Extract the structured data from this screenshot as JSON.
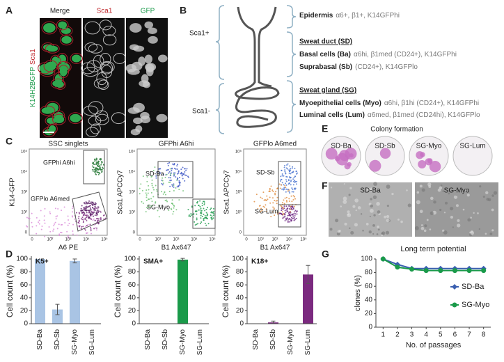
{
  "panel_labels": [
    "A",
    "B",
    "C",
    "D",
    "E",
    "F",
    "G"
  ],
  "panel_a": {
    "columns": [
      "Merge",
      "Sca1",
      "GFP"
    ],
    "side_label": [
      "K14H2BGFP",
      "Sca1"
    ]
  },
  "panel_b": {
    "groups": [
      "Sca1+",
      "Sca1-"
    ],
    "epidermis": {
      "name": "Epidermis",
      "markers": "α6+, β1+, K14GFPhi"
    },
    "sections": [
      {
        "heading": "Sweat duct (SD)",
        "cells": [
          {
            "name": "Basal cells (Ba)",
            "markers": "α6hi, β1med (CD24+), K14GFPhi"
          },
          {
            "name": "Suprabasal (Sb)",
            "markers": "(CD24+), K14GFPlo"
          }
        ]
      },
      {
        "heading": "Sweat gland (SG)",
        "cells": [
          {
            "name": "Myoepithelial cells (Myo)",
            "markers": "α6hi, β1hi (CD24+), K14GFPhi"
          },
          {
            "name": "Luminal cells (Lum)",
            "markers": "α6med, β1med (CD24hi), K14GFPlo"
          }
        ]
      }
    ]
  },
  "panel_c": {
    "tick_labels": [
      "0",
      "10²",
      "10³",
      "10⁴",
      "10⁵"
    ],
    "plots": [
      {
        "title": "SSC singlets",
        "gates": [
          "GFPhi A6hi",
          "GFPlo A6med"
        ],
        "xlabel": "A6 PE",
        "ylabel": "K14-GFP"
      },
      {
        "title": "GFPhi  A6hi",
        "gates": [
          "SD-Ba",
          "SG-Myo"
        ],
        "xlabel": "B1 Ax647",
        "ylabel": "Sca1 APCCy7"
      },
      {
        "title": "GFPlo  A6med",
        "gates": [
          "SD-Sb",
          "SG-Lum"
        ],
        "xlabel": "B1 Ax647",
        "ylabel": "Sca1 APCCy7"
      }
    ]
  },
  "panel_e": {
    "title": "Colony formation",
    "dishes": [
      "SD-Ba",
      "SD-Sb",
      "SG-Myo",
      "SG-Lum"
    ]
  },
  "panel_f": {
    "images": [
      "SD-Ba",
      "SG-Myo"
    ]
  },
  "chart_data": [
    {
      "type": "bar",
      "title": "K5+",
      "ylabel": "Cell count (%)",
      "categories": [
        "SD-Ba",
        "SD-Sb",
        "SG-Myo",
        "SG-Lum"
      ],
      "values": [
        100,
        22,
        97,
        0
      ],
      "errors": [
        0,
        8,
        3,
        0
      ],
      "color": "#a9c4e4",
      "ylim": [
        0,
        100
      ],
      "yticks": [
        0,
        20,
        40,
        60,
        80,
        100
      ]
    },
    {
      "type": "bar",
      "title": "SMA+",
      "ylabel": "Cell count (%)",
      "categories": [
        "SD-Ba",
        "SD-Sb",
        "SG-Myo",
        "SG-Lum"
      ],
      "values": [
        0,
        0,
        99,
        0
      ],
      "errors": [
        0,
        0,
        2,
        0
      ],
      "color": "#1a9a4a",
      "ylim": [
        0,
        100
      ],
      "yticks": [
        0,
        20,
        40,
        60,
        80,
        100
      ]
    },
    {
      "type": "bar",
      "title": "K18+",
      "ylabel": "Cell count (%)",
      "categories": [
        "SD-Ba",
        "SD-Sb",
        "SG-Myo",
        "SG-Lum"
      ],
      "values": [
        0,
        2,
        0,
        76
      ],
      "errors": [
        0,
        2,
        0,
        14
      ],
      "color": "#7b2a7f",
      "ylim": [
        0,
        100
      ],
      "yticks": [
        0,
        20,
        40,
        60,
        80,
        100
      ]
    },
    {
      "type": "line",
      "title": "Long term potential",
      "xlabel": "No. of passages",
      "ylabel": "clones (%)",
      "x": [
        1,
        2,
        3,
        4,
        5,
        6,
        7,
        8
      ],
      "series": [
        {
          "name": "SD-Ba",
          "color": "#3a5fb0",
          "values": [
            100,
            92,
            86,
            86,
            86,
            86,
            86,
            86
          ]
        },
        {
          "name": "SG-Myo",
          "color": "#1a9a4a",
          "values": [
            100,
            88,
            85,
            83,
            83,
            83,
            83,
            83
          ]
        }
      ],
      "xlim": [
        0.5,
        8.5
      ],
      "ylim": [
        0,
        100
      ],
      "xticks": [
        1,
        2,
        3,
        4,
        5,
        6,
        7,
        8
      ],
      "yticks": [
        0,
        20,
        40,
        60,
        80,
        100
      ],
      "legend": "right"
    }
  ]
}
